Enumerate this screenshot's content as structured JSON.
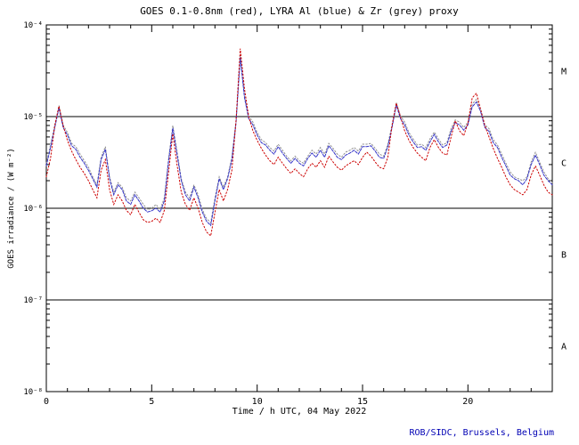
{
  "page": {
    "background": "#ffffff"
  },
  "footer": {
    "credit": "ROB/SIDC, Brussels, Belgium"
  },
  "chart_data": {
    "type": "line",
    "title": "GOES 0.1-0.8nm (red), LYRA Al (blue) & Zr (grey) proxy",
    "xlabel": "Time / h UTC, 04 May 2022",
    "ylabel": "GOES irradiance / (W m⁻²)",
    "x_range": [
      0,
      24
    ],
    "y_range": [
      1e-08,
      0.0001
    ],
    "y_scale": "log",
    "grid": "off",
    "x_major_ticks": [
      0,
      5,
      10,
      15,
      20
    ],
    "x_minor_tick_step": 1,
    "y_tick_values": [
      0.0001,
      1e-05,
      1e-06,
      1e-07,
      1e-08
    ],
    "y_tick_labels": [
      "10⁻⁴",
      "10⁻⁵",
      "10⁻⁶",
      "10⁻⁷",
      "10⁻⁸"
    ],
    "reference_lines": [
      1e-05,
      1e-06,
      1e-07
    ],
    "flare_classes": [
      {
        "label": "M",
        "value": 3.16e-05
      },
      {
        "label": "C",
        "value": 3.16e-06
      },
      {
        "label": "B",
        "value": 3.16e-07
      },
      {
        "label": "A",
        "value": 3.16e-08
      }
    ],
    "x_start": 0,
    "x_step": 0.2,
    "unit_scale": 1e-06,
    "series": [
      {
        "id": "goes-xray-line",
        "name": "GOES 0.1-0.8nm",
        "color": "#cc0000",
        "style": "dotted",
        "values_1e6": [
          2.2,
          3.5,
          8.0,
          13.0,
          8.0,
          5.5,
          4.2,
          3.4,
          2.8,
          2.4,
          2.0,
          1.6,
          1.3,
          2.6,
          3.4,
          1.6,
          1.1,
          1.4,
          1.2,
          0.95,
          0.85,
          1.1,
          0.9,
          0.75,
          0.7,
          0.72,
          0.78,
          0.7,
          0.95,
          2.5,
          6.5,
          3.0,
          1.5,
          1.1,
          0.95,
          1.3,
          1.0,
          0.7,
          0.55,
          0.5,
          0.9,
          1.6,
          1.2,
          1.6,
          2.6,
          9.0,
          55.0,
          20.0,
          10.0,
          7.0,
          5.5,
          4.5,
          3.8,
          3.3,
          3.0,
          3.6,
          3.1,
          2.7,
          2.4,
          2.7,
          2.4,
          2.2,
          2.7,
          3.1,
          2.8,
          3.3,
          2.8,
          3.7,
          3.2,
          2.8,
          2.6,
          2.9,
          3.1,
          3.3,
          3.0,
          3.6,
          4.1,
          3.7,
          3.2,
          2.8,
          2.7,
          3.6,
          8.0,
          14.0,
          10.0,
          7.0,
          5.5,
          4.6,
          4.0,
          3.6,
          3.3,
          4.6,
          5.6,
          4.6,
          4.0,
          3.8,
          6.0,
          9.0,
          7.0,
          6.2,
          8.5,
          16.0,
          18.0,
          12.0,
          8.0,
          6.0,
          4.5,
          3.5,
          2.8,
          2.2,
          1.8,
          1.6,
          1.5,
          1.4,
          1.6,
          2.3,
          2.9,
          2.3,
          1.8,
          1.5,
          1.4
        ]
      },
      {
        "id": "lyra-al-line",
        "name": "LYRA Al proxy",
        "color": "#3434c8",
        "style": "dash",
        "values_1e6": [
          2.9,
          4.6,
          7.6,
          12.4,
          7.6,
          6.3,
          4.8,
          4.4,
          3.6,
          3.1,
          2.6,
          2.1,
          1.7,
          3.4,
          4.4,
          2.1,
          1.4,
          1.8,
          1.6,
          1.2,
          1.1,
          1.4,
          1.2,
          1.0,
          0.91,
          0.94,
          1.0,
          0.91,
          1.2,
          3.3,
          7.5,
          3.9,
          2.0,
          1.4,
          1.2,
          1.7,
          1.3,
          0.91,
          0.72,
          0.65,
          1.2,
          2.1,
          1.6,
          2.1,
          3.4,
          8.6,
          44.0,
          16.0,
          9.5,
          8.1,
          6.3,
          5.2,
          4.9,
          4.3,
          3.9,
          4.7,
          4.0,
          3.5,
          3.1,
          3.5,
          3.1,
          2.9,
          3.5,
          4.0,
          3.6,
          4.3,
          3.6,
          4.8,
          4.2,
          3.6,
          3.4,
          3.8,
          4.0,
          4.3,
          3.9,
          4.7,
          4.7,
          4.8,
          4.2,
          3.6,
          3.5,
          4.7,
          7.6,
          13.3,
          9.5,
          8.1,
          6.3,
          5.3,
          4.6,
          4.7,
          4.3,
          5.3,
          6.4,
          5.3,
          4.6,
          4.9,
          6.9,
          8.6,
          8.1,
          7.1,
          8.1,
          12.8,
          14.4,
          11.4,
          7.6,
          6.9,
          5.2,
          4.6,
          3.6,
          2.9,
          2.3,
          2.1,
          2.0,
          1.8,
          2.1,
          3.0,
          3.8,
          3.0,
          2.3,
          2.0,
          1.8
        ]
      },
      {
        "id": "lyra-zr-line",
        "name": "LYRA Zr proxy",
        "color": "#909090",
        "style": "dotted",
        "values_1e6": [
          3.1,
          4.9,
          8.1,
          13.2,
          8.1,
          6.7,
          5.1,
          4.7,
          3.9,
          3.3,
          2.8,
          2.2,
          1.8,
          3.6,
          4.7,
          2.2,
          1.5,
          1.9,
          1.7,
          1.3,
          1.2,
          1.5,
          1.3,
          1.1,
          0.97,
          1.0,
          1.1,
          0.97,
          1.3,
          3.5,
          8.0,
          4.2,
          2.1,
          1.5,
          1.3,
          1.8,
          1.4,
          0.97,
          0.77,
          0.7,
          1.3,
          2.2,
          1.7,
          2.2,
          3.6,
          9.2,
          47.0,
          17.0,
          10.2,
          8.7,
          6.7,
          5.6,
          5.2,
          4.6,
          4.2,
          5.0,
          4.3,
          3.7,
          3.3,
          3.7,
          3.3,
          3.1,
          3.7,
          4.3,
          3.9,
          4.6,
          3.9,
          5.1,
          4.5,
          3.9,
          3.6,
          4.1,
          4.3,
          4.6,
          4.2,
          5.0,
          5.0,
          5.1,
          4.5,
          3.9,
          3.7,
          5.0,
          8.1,
          14.2,
          10.2,
          8.7,
          6.7,
          5.7,
          4.9,
          5.0,
          4.6,
          5.7,
          6.8,
          5.7,
          4.9,
          5.2,
          7.4,
          9.2,
          8.7,
          7.6,
          8.7,
          13.7,
          15.4,
          12.2,
          8.1,
          7.4,
          5.6,
          4.9,
          3.9,
          3.1,
          2.5,
          2.2,
          2.1,
          2.0,
          2.2,
          3.2,
          4.1,
          3.2,
          2.5,
          2.1,
          1.9
        ]
      }
    ]
  }
}
